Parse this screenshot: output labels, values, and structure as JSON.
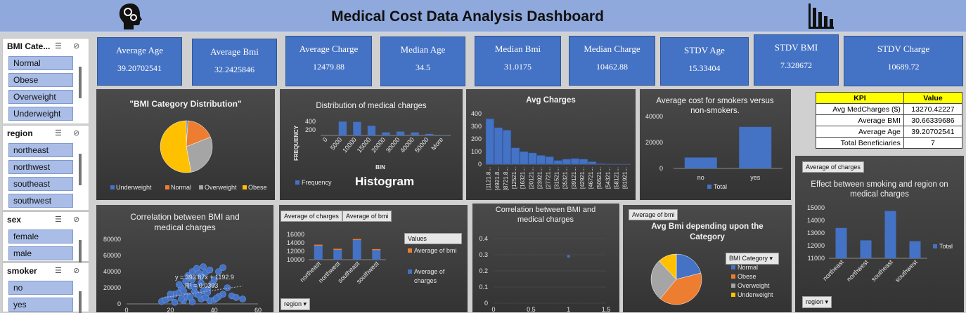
{
  "header": {
    "title": "Medical Cost Data Analysis Dashboard"
  },
  "kpi_cards": [
    {
      "label": "Average Age",
      "value": "39.20702541"
    },
    {
      "label": "Average Bmi",
      "value": "32.2425846"
    },
    {
      "label": "Average Charge",
      "value": "12479.88"
    },
    {
      "label": "Median Age",
      "value": "34.5"
    },
    {
      "label": "Median Bmi",
      "value": "31.0175"
    },
    {
      "label": "Median Charge",
      "value": "10462.88"
    },
    {
      "label": "STDV Age",
      "value": "15.33404"
    },
    {
      "label": "STDV BMI",
      "value": "7.328672"
    },
    {
      "label": "STDV Charge",
      "value": "10689.72"
    }
  ],
  "slicers": [
    {
      "title": "BMI Cate...",
      "items": [
        "Normal",
        "Obese",
        "Overweight",
        "Underweight"
      ]
    },
    {
      "title": "region",
      "items": [
        "northeast",
        "northwest",
        "southeast",
        "southwest"
      ]
    },
    {
      "title": "sex",
      "items": [
        "female",
        "male"
      ]
    },
    {
      "title": "smoker",
      "items": [
        "no",
        "yes"
      ]
    }
  ],
  "kpi_table": {
    "headers": [
      "KPI",
      "Value"
    ],
    "rows": [
      [
        "Avg MedCharges ($)",
        "13270.42227"
      ],
      [
        "Average BMI",
        "30.66339686"
      ],
      [
        "Average Age",
        "39.20702541"
      ],
      [
        "Total Beneficiaries",
        "7"
      ]
    ]
  },
  "pivot_buttons": {
    "avg_charges": "Average of charges",
    "avg_bmi": "Average of bmi",
    "region": "region",
    "values": "Values",
    "bmi_category": "BMI Category"
  },
  "histogram_label": "Histogram",
  "colors": {
    "blue": "#4472c4",
    "orange": "#ed7d31",
    "gray": "#a5a5a5",
    "yellow": "#ffc000"
  },
  "chart_data": [
    {
      "type": "pie",
      "title": "\"BMI Category Distribution\"",
      "labels": [
        "Underweight",
        "Normal",
        "Overweight",
        "Obese"
      ],
      "values": [
        1,
        18,
        28,
        53
      ]
    },
    {
      "type": "bar",
      "title": "Distribution of medical charges",
      "xlabel": "BIN",
      "ylabel": "FREQUENCY",
      "categories": [
        "0",
        "5000",
        "10000",
        "15000",
        "20000",
        "30000",
        "40000",
        "50000",
        "More"
      ],
      "series": [
        {
          "name": "Frequency",
          "values": [
            0,
            360,
            350,
            250,
            80,
            100,
            80,
            40,
            10
          ]
        }
      ],
      "yticks": [
        "200",
        "400"
      ],
      "ylim": [
        0,
        400
      ]
    },
    {
      "type": "bar",
      "title": "Avg Charges",
      "categories": [
        "[1121.8...",
        "[4921.8...",
        "[8721.8...",
        "[12521...",
        "[16321...",
        "[20121...",
        "[23921...",
        "[27721...",
        "[31521...",
        "[35321...",
        "[39121...",
        "[42921...",
        "[46721...",
        "[50521...",
        "[54321...",
        "[58121...",
        "[61921..."
      ],
      "values": [
        360,
        290,
        270,
        130,
        100,
        90,
        70,
        60,
        30,
        40,
        45,
        40,
        20,
        5,
        3,
        3,
        2
      ],
      "yticks": [
        "0",
        "100",
        "200",
        "300",
        "400"
      ],
      "ylim": [
        0,
        400
      ]
    },
    {
      "type": "bar",
      "title": "Average cost for smokers versus non-smokers.",
      "categories": [
        "no",
        "yes"
      ],
      "series": [
        {
          "name": "Total",
          "values": [
            8400,
            32000
          ]
        }
      ],
      "yticks": [
        "0",
        "20000",
        "40000"
      ],
      "ylim": [
        0,
        40000
      ]
    },
    {
      "type": "bar",
      "title": "Effect between smoking and region on medical charges",
      "categories": [
        "northeast",
        "northwest",
        "southeast",
        "southwest"
      ],
      "series": [
        {
          "name": "Total",
          "values": [
            13400,
            12420,
            14740,
            12350
          ]
        }
      ],
      "yticks": [
        "11000",
        "12000",
        "13000",
        "14000",
        "15000"
      ],
      "ylim": [
        11000,
        15000
      ]
    },
    {
      "type": "scatter",
      "title": "Correlation between BMI and medical charges",
      "x": [
        16,
        18,
        20,
        22,
        24,
        25,
        26,
        27,
        28,
        29,
        30,
        31,
        32,
        33,
        34,
        35,
        36,
        37,
        38,
        40,
        42,
        44,
        46,
        48,
        50,
        53,
        22,
        26,
        30,
        34,
        38,
        42,
        28,
        32,
        36,
        40,
        24,
        30,
        34,
        44,
        20,
        27,
        31,
        35,
        39,
        25,
        29,
        33,
        37,
        41
      ],
      "y": [
        3000,
        5000,
        8000,
        12000,
        14000,
        20000,
        16000,
        28000,
        35000,
        22000,
        40000,
        15000,
        44000,
        38000,
        26000,
        46000,
        39000,
        18000,
        42000,
        30000,
        40000,
        12000,
        20000,
        10000,
        8000,
        6000,
        2000,
        4000,
        2500,
        6000,
        4000,
        9000,
        10000,
        12000,
        8000,
        5000,
        24000,
        30000,
        34000,
        45000,
        12000,
        9000,
        21000,
        16000,
        25000,
        6000,
        8000,
        11000,
        14000,
        7000
      ],
      "annotations": [
        "y = 393.87x + 1192.9",
        "R² = 0.0393"
      ],
      "xticks": [
        "0",
        "20",
        "40",
        "60"
      ],
      "yticks": [
        "0",
        "20000",
        "40000",
        "60000",
        "80000"
      ],
      "xlim": [
        0,
        60
      ],
      "ylim": [
        0,
        80000
      ]
    },
    {
      "type": "bar",
      "categories": [
        "northeast",
        "northwest",
        "southeast",
        "southwest"
      ],
      "series": [
        {
          "name": "Average of bmi",
          "values": [
            29,
            29,
            33,
            30
          ]
        },
        {
          "name": "Average of charges",
          "values": [
            13400,
            12420,
            14740,
            12350
          ]
        }
      ],
      "yticks": [
        "10000",
        "12000",
        "14000",
        "16000"
      ],
      "ylim": [
        10000,
        16000
      ]
    },
    {
      "type": "scatter",
      "title": "Correlation between BMI and medical charges",
      "x": [
        1
      ],
      "y": [
        0.29
      ],
      "xticks": [
        "0",
        "0.5",
        "1",
        "1.5"
      ],
      "yticks": [
        "0",
        "0.1",
        "0.2",
        "0.3",
        "0.4"
      ],
      "xlim": [
        0,
        1.5
      ],
      "ylim": [
        0,
        0.4
      ]
    },
    {
      "type": "pie",
      "title": "Avg Bmi depending upon the Category",
      "labels": [
        "Normal",
        "Obese",
        "Overweight",
        "Underweight"
      ],
      "values": [
        21,
        40,
        27,
        12
      ]
    }
  ]
}
